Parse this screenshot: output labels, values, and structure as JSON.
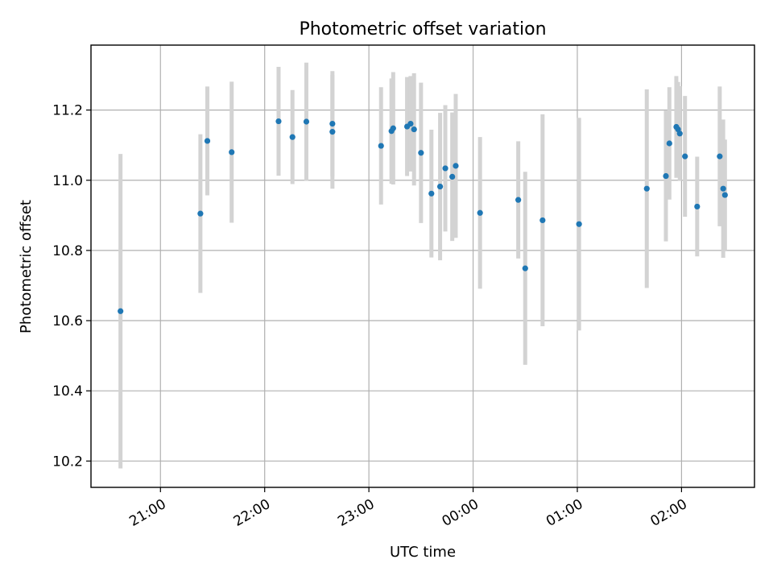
{
  "chart_data": {
    "type": "scatter",
    "title": "Photometric offset variation",
    "xlabel": "UTC time",
    "ylabel": "Photometric offset",
    "x_axis_kind": "time",
    "xlim": [
      "20:20",
      "02:42"
    ],
    "ylim": [
      10.125,
      11.385
    ],
    "x_ticks": [
      "21:00",
      "22:00",
      "23:00",
      "00:00",
      "01:00",
      "02:00"
    ],
    "y_ticks": [
      10.2,
      10.4,
      10.6,
      10.8,
      11.0,
      11.2
    ],
    "y_tick_labels": [
      "10.2",
      "10.4",
      "10.6",
      "10.8",
      "11.0",
      "11.2"
    ],
    "grid": true,
    "colors": {
      "points": "#1f77b4",
      "error_bars": "#d3d3d3",
      "grid": "#b0b0b0"
    },
    "series": [
      {
        "error_bar_style": "vertical gray bars",
        "points": [
          {
            "x": "20:37",
            "y": 10.627,
            "err": 0.448
          },
          {
            "x": "21:23",
            "y": 10.905,
            "err": 0.226
          },
          {
            "x": "21:27",
            "y": 11.112,
            "err": 0.155
          },
          {
            "x": "21:41",
            "y": 11.08,
            "err": 0.201
          },
          {
            "x": "22:08",
            "y": 11.168,
            "err": 0.155
          },
          {
            "x": "22:16",
            "y": 11.123,
            "err": 0.134
          },
          {
            "x": "22:24",
            "y": 11.167,
            "err": 0.168
          },
          {
            "x": "22:39",
            "y": 11.161,
            "err": 0.15
          },
          {
            "x": "22:39",
            "y": 11.138,
            "err": 0.162
          },
          {
            "x": "23:07",
            "y": 11.098,
            "err": 0.167
          },
          {
            "x": "23:13",
            "y": 11.14,
            "err": 0.15
          },
          {
            "x": "23:14",
            "y": 11.148,
            "err": 0.16
          },
          {
            "x": "23:22",
            "y": 11.153,
            "err": 0.141
          },
          {
            "x": "23:24",
            "y": 11.161,
            "err": 0.136
          },
          {
            "x": "23:26",
            "y": 11.145,
            "err": 0.16
          },
          {
            "x": "23:30",
            "y": 11.078,
            "err": 0.2
          },
          {
            "x": "23:36",
            "y": 10.962,
            "err": 0.182
          },
          {
            "x": "23:41",
            "y": 10.982,
            "err": 0.21
          },
          {
            "x": "23:44",
            "y": 11.034,
            "err": 0.18
          },
          {
            "x": "23:48",
            "y": 11.01,
            "err": 0.183
          },
          {
            "x": "23:50",
            "y": 11.041,
            "err": 0.205
          },
          {
            "x": "00:04",
            "y": 10.907,
            "err": 0.216
          },
          {
            "x": "00:26",
            "y": 10.944,
            "err": 0.167
          },
          {
            "x": "00:30",
            "y": 10.749,
            "err": 0.275
          },
          {
            "x": "00:40",
            "y": 10.886,
            "err": 0.302
          },
          {
            "x": "01:01",
            "y": 10.875,
            "err": 0.303
          },
          {
            "x": "01:40",
            "y": 10.976,
            "err": 0.283
          },
          {
            "x": "01:51",
            "y": 11.012,
            "err": 0.186
          },
          {
            "x": "01:53",
            "y": 11.105,
            "err": 0.16
          },
          {
            "x": "01:57",
            "y": 11.152,
            "err": 0.145
          },
          {
            "x": "01:58",
            "y": 11.145,
            "err": 0.135
          },
          {
            "x": "01:59",
            "y": 11.133,
            "err": 0.135
          },
          {
            "x": "02:02",
            "y": 11.068,
            "err": 0.172
          },
          {
            "x": "02:09",
            "y": 10.925,
            "err": 0.142
          },
          {
            "x": "02:22",
            "y": 11.068,
            "err": 0.199
          },
          {
            "x": "02:24",
            "y": 10.976,
            "err": 0.197
          },
          {
            "x": "02:25",
            "y": 10.958,
            "err": 0.158
          }
        ]
      }
    ]
  }
}
